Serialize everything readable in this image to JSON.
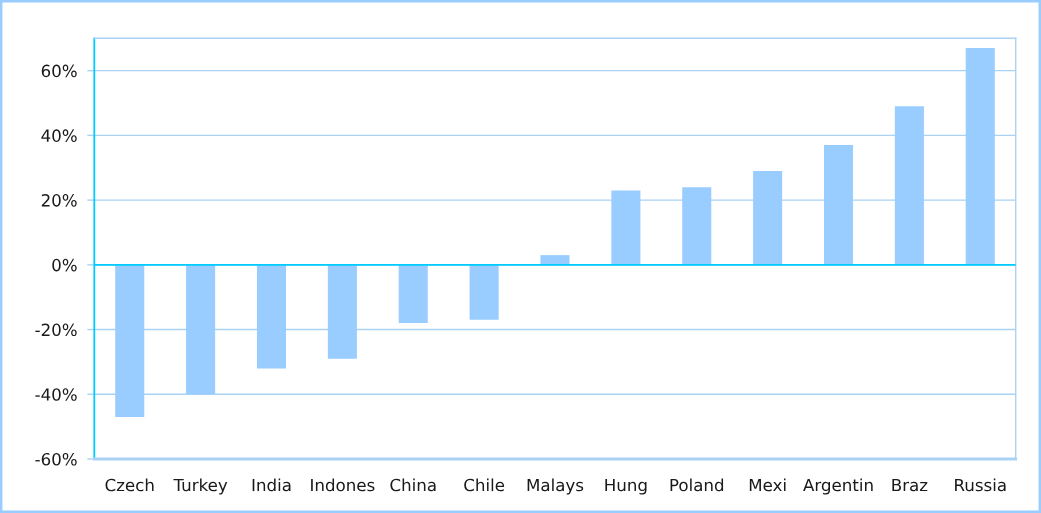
{
  "chart_data": {
    "type": "bar",
    "categories": [
      "Czech",
      "Turkey",
      "India",
      "Indones",
      "China",
      "Chile",
      "Malays",
      "Hung",
      "Poland",
      "Mexi",
      "Argentin",
      "Braz",
      "Russia"
    ],
    "values": [
      -47,
      -40,
      -32,
      -29,
      -18,
      -17,
      3,
      23,
      24,
      29,
      37,
      49,
      67
    ],
    "color": "#99ccff",
    "ylim": [
      -60,
      70
    ],
    "yticks": [
      {
        "value": -60,
        "label": "-60%"
      },
      {
        "value": -40,
        "label": "-40%"
      },
      {
        "value": -20,
        "label": "-20%"
      },
      {
        "value": 0,
        "label": "0%"
      },
      {
        "value": 20,
        "label": "20%"
      },
      {
        "value": 40,
        "label": "40%"
      },
      {
        "value": 60,
        "label": "60%"
      }
    ],
    "ref_lines": [
      {
        "axis": "y",
        "value": 0,
        "color": "#00ccff",
        "line_style": "solid"
      }
    ],
    "grid": "y"
  }
}
